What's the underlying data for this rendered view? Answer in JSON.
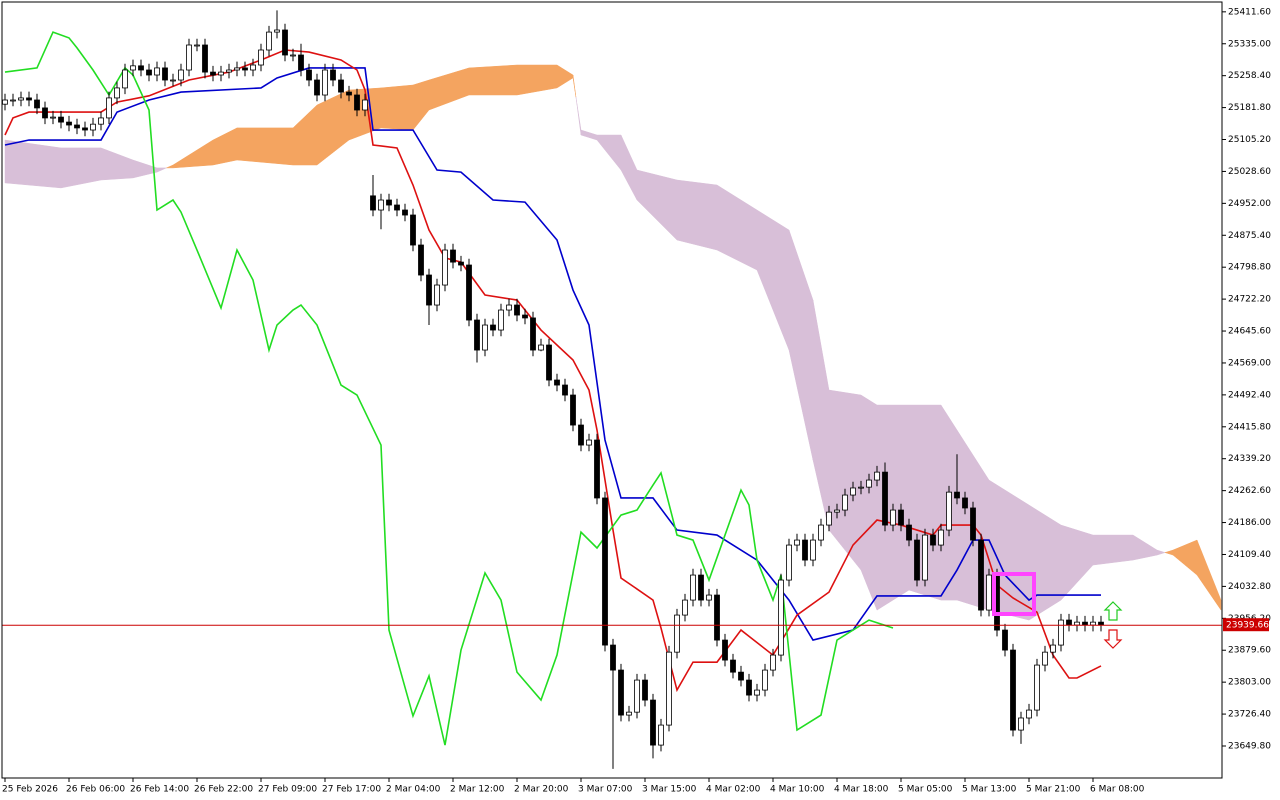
{
  "chart_data": {
    "type": "candlestick",
    "open": [
      25190,
      25200,
      25200,
      25205,
      25200,
      25181,
      25157,
      25159,
      25147,
      25140,
      25133,
      25128,
      25142,
      25157,
      25205,
      25229,
      25272,
      25282,
      25272,
      25260,
      25277,
      25248,
      25248,
      25272,
      25332,
      25332,
      25267,
      25260,
      25267,
      25272,
      25277,
      25272,
      25284,
      25320,
      25363,
      25368,
      25308,
      25308,
      25272,
      25248,
      25212,
      25272,
      25248,
      25219,
      25212,
      25176,
      24970,
      24936,
      24960,
      24948,
      24936,
      24924,
      24852,
      24780,
      24708,
      24756,
      24840,
      24811,
      24804,
      24672,
      24600,
      24660,
      24648,
      24696,
      24708,
      24684,
      24677,
      24600,
      24612,
      24528,
      24516,
      24492,
      24420,
      24372,
      24384,
      24245,
      23892,
      23832,
      23724,
      23731,
      23808,
      23760,
      23652,
      23700,
      23875,
      23964,
      24000,
      24060,
      24000,
      24012,
      23904,
      23856,
      23827,
      23808,
      23772,
      23784,
      23832,
      23868,
      24048,
      24132,
      24144,
      24096,
      24144,
      24180,
      24211,
      24216,
      24252,
      24269,
      24271,
      24288,
      24307,
      24180,
      24216,
      24180,
      24144,
      24048,
      24156,
      24132,
      24168,
      24259,
      24245,
      24221,
      24144,
      23976,
      24060,
      23928,
      23880,
      23688,
      23717,
      23736,
      23844,
      23875,
      23892,
      23952,
      23940,
      23947,
      23940,
      23947
    ],
    "high": [
      25215,
      25215,
      25220,
      25220,
      25215,
      25196,
      25174,
      25174,
      25162,
      25155,
      25148,
      25157,
      25172,
      25220,
      25244,
      25287,
      25297,
      25297,
      25287,
      25292,
      25292,
      25263,
      25287,
      25347,
      25347,
      25347,
      25282,
      25282,
      25287,
      25292,
      25292,
      25299,
      25335,
      25378,
      25415,
      25383,
      25323,
      25335,
      25287,
      25263,
      25287,
      25287,
      25263,
      25234,
      25227,
      25215,
      25020,
      24975,
      24975,
      24963,
      24951,
      24939,
      24867,
      24795,
      24771,
      24855,
      24855,
      24826,
      24819,
      24687,
      24675,
      24675,
      24711,
      24723,
      24723,
      24699,
      24692,
      24627,
      24627,
      24543,
      24531,
      24507,
      24435,
      24399,
      24399,
      24260,
      23907,
      23847,
      23746,
      23823,
      23823,
      23775,
      23715,
      23890,
      23979,
      24015,
      24075,
      24075,
      24027,
      24027,
      23919,
      23871,
      23842,
      23823,
      23799,
      23847,
      23883,
      24063,
      24147,
      24159,
      24159,
      24159,
      24195,
      24226,
      24231,
      24267,
      24284,
      24286,
      24303,
      24322,
      24330,
      24231,
      24231,
      24195,
      24159,
      24171,
      24171,
      24183,
      24274,
      24350,
      24260,
      24236,
      24159,
      24075,
      24075,
      23943,
      23895,
      23732,
      23751,
      23859,
      23890,
      23907,
      23967,
      23967,
      23962,
      23962,
      23962,
      23962
    ],
    "low": [
      25175,
      25185,
      25185,
      25185,
      25166,
      25142,
      25142,
      25132,
      25125,
      25118,
      25113,
      25113,
      25127,
      25142,
      25190,
      25214,
      25257,
      25257,
      25245,
      25245,
      25233,
      25233,
      25233,
      25257,
      25317,
      25252,
      25245,
      25245,
      25252,
      25257,
      25257,
      25257,
      25269,
      25305,
      25348,
      25293,
      25293,
      25257,
      25233,
      25197,
      25197,
      25233,
      25204,
      25197,
      25161,
      25161,
      24921,
      24890,
      24933,
      24921,
      24909,
      24837,
      24765,
      24660,
      24693,
      24741,
      24796,
      24789,
      24657,
      24570,
      24585,
      24633,
      24633,
      24681,
      24669,
      24662,
      24585,
      24597,
      24513,
      24501,
      24477,
      24405,
      24357,
      24357,
      24230,
      23877,
      23595,
      23709,
      23709,
      23716,
      23745,
      23620,
      23637,
      23685,
      23860,
      23949,
      23985,
      23985,
      23985,
      23889,
      23841,
      23812,
      23793,
      23757,
      23757,
      23769,
      23817,
      23853,
      24033,
      24117,
      24081,
      24081,
      24129,
      24165,
      24196,
      24201,
      24237,
      24254,
      24256,
      24273,
      24165,
      24165,
      24165,
      24129,
      24033,
      24033,
      24117,
      24117,
      24153,
      24230,
      24206,
      24129,
      23961,
      23961,
      23913,
      23865,
      23673,
      23655,
      23702,
      23721,
      23829,
      23860,
      23877,
      23925,
      23925,
      23925,
      23925,
      23925
    ],
    "close": [
      25200,
      25200,
      25205,
      25200,
      25181,
      25157,
      25159,
      25147,
      25140,
      25133,
      25128,
      25142,
      25157,
      25205,
      25229,
      25272,
      25282,
      25272,
      25260,
      25277,
      25248,
      25248,
      25272,
      25332,
      25332,
      25267,
      25260,
      25267,
      25272,
      25277,
      25272,
      25284,
      25320,
      25363,
      25368,
      25308,
      25308,
      25272,
      25248,
      25212,
      25272,
      25248,
      25219,
      25212,
      25176,
      25200,
      24936,
      24960,
      24948,
      24936,
      24924,
      24852,
      24780,
      24708,
      24756,
      24840,
      24811,
      24804,
      24672,
      24600,
      24660,
      24648,
      24696,
      24708,
      24684,
      24677,
      24600,
      24612,
      24528,
      24516,
      24492,
      24420,
      24372,
      24384,
      24245,
      23892,
      23832,
      23724,
      23731,
      23808,
      23760,
      23652,
      23700,
      23875,
      23964,
      24000,
      24060,
      24000,
      24012,
      23904,
      23856,
      23827,
      23808,
      23772,
      23784,
      23832,
      23868,
      24048,
      24132,
      24144,
      24096,
      24144,
      24180,
      24211,
      24216,
      24252,
      24269,
      24271,
      24288,
      24307,
      24180,
      24216,
      24180,
      24144,
      24048,
      24156,
      24132,
      24168,
      24259,
      24245,
      24221,
      24144,
      23976,
      24060,
      23928,
      23880,
      23688,
      23717,
      23736,
      23844,
      23875,
      23892,
      23952,
      23940,
      23947,
      23940,
      23947,
      23940
    ],
    "up_color": "#ffffff",
    "down_color": "#000000",
    "cloud": {
      "up_color": "#f4a460",
      "down_color": "#d8bfd8",
      "x": [
        0,
        7,
        12,
        16,
        19,
        21,
        26,
        29,
        36,
        39,
        43,
        47,
        51,
        53,
        58,
        64,
        69,
        71,
        72,
        74,
        77,
        79,
        84,
        89,
        94,
        98,
        101,
        103,
        107,
        109,
        113,
        117,
        119,
        123,
        128,
        132,
        136,
        141,
        144,
        146,
        149,
        152
      ],
      "span_a": [
        25001,
        24989,
        25008,
        25013,
        25027,
        25044,
        25104,
        25133,
        25133,
        25188,
        25224,
        25229,
        25236,
        25248,
        25277,
        25284,
        25284,
        25260,
        25116,
        25104,
        25032,
        24960,
        24864,
        24840,
        24792,
        24600,
        24336,
        24168,
        24072,
        23976,
        24024,
        24000,
        24000,
        23976,
        23952,
        24000,
        24084,
        24096,
        24108,
        24120,
        24144,
        24000
      ],
      "span_b": [
        25104,
        25085,
        25085,
        25056,
        25037,
        25037,
        25044,
        25056,
        25044,
        25044,
        25104,
        25133,
        25128,
        25176,
        25212,
        25212,
        25229,
        25253,
        25128,
        25116,
        25116,
        25032,
        25008,
        24996,
        24936,
        24888,
        24720,
        24504,
        24492,
        24468,
        24468,
        24468,
        24408,
        24288,
        24228,
        24180,
        24156,
        24156,
        24120,
        24108,
        24060,
        23976
      ]
    },
    "lines": [
      {
        "color": "#0000cc",
        "x": [
          0,
          3,
          12,
          14,
          18,
          22,
          32,
          34,
          38,
          45,
          46,
          51,
          54,
          57,
          61,
          65,
          69,
          71,
          73,
          75,
          77,
          81,
          84,
          89,
          94,
          98,
          101,
          106,
          109,
          117,
          119,
          121,
          123,
          125,
          128,
          129,
          137
        ],
        "values": [
          25092,
          25104,
          25104,
          25171,
          25200,
          25219,
          25229,
          25253,
          25277,
          25277,
          25128,
          25128,
          25032,
          25027,
          24960,
          24955,
          24864,
          24744,
          24660,
          24384,
          24245,
          24245,
          24168,
          24156,
          24096,
          24000,
          23904,
          23928,
          24010,
          24010,
          24072,
          24144,
          24144,
          24060,
          24000,
          24012,
          24012
        ]
      },
      {
        "color": "#dd1111",
        "x": [
          0,
          1,
          3,
          7,
          12,
          14,
          18,
          23,
          28,
          32,
          35,
          38,
          42,
          44,
          45,
          46,
          49,
          51,
          53,
          55,
          57,
          60,
          64,
          67,
          71,
          73,
          74,
          76,
          77,
          81,
          82,
          84,
          86,
          89,
          92,
          96,
          99,
          103,
          106,
          109,
          112,
          116,
          117,
          121,
          122,
          124,
          126,
          129,
          131,
          133,
          134,
          137
        ],
        "values": [
          25116,
          25157,
          25171,
          25171,
          25171,
          25195,
          25210,
          25248,
          25267,
          25296,
          25320,
          25315,
          25296,
          25272,
          25224,
          25092,
          25085,
          24996,
          24888,
          24821,
          24811,
          24732,
          24720,
          24648,
          24576,
          24504,
          24408,
          24168,
          24053,
          24000,
          23933,
          23784,
          23851,
          23851,
          23928,
          23868,
          23964,
          24019,
          24132,
          24192,
          24180,
          24156,
          24180,
          24180,
          24156,
          24036,
          24005,
          23971,
          23868,
          23813,
          23813,
          23842
        ]
      },
      {
        "color": "#22dd22",
        "x": [
          0,
          4,
          6,
          8,
          9,
          11,
          13,
          15,
          16,
          18,
          19,
          21,
          22,
          24,
          27,
          29,
          31,
          33,
          34,
          36,
          37,
          39,
          42,
          44,
          47,
          48,
          51,
          53,
          55,
          57,
          60,
          62,
          64,
          67,
          69,
          72,
          74,
          77,
          79,
          81,
          82,
          84,
          86,
          88,
          92,
          93,
          94,
          96,
          97,
          99,
          102,
          104,
          108,
          111
        ],
        "values": [
          25267,
          25277,
          25363,
          25349,
          25325,
          25272,
          25212,
          25277,
          25260,
          25176,
          24936,
          24960,
          24931,
          24840,
          24701,
          24840,
          24768,
          24600,
          24660,
          24696,
          24708,
          24660,
          24516,
          24492,
          24372,
          23928,
          23722,
          23818,
          23652,
          23880,
          24065,
          24000,
          23827,
          23760,
          23868,
          24163,
          24125,
          24204,
          24216,
          24276,
          24305,
          24156,
          24144,
          24048,
          24264,
          24228,
          24096,
          24000,
          24060,
          23688,
          23724,
          23904,
          23952,
          23933
        ]
      }
    ],
    "current_price": 23939.66,
    "current_price_color": "#cc0000",
    "xlim": [
      -0.375,
      152.125
    ],
    "ylim": [
      23573,
      25440
    ],
    "yticks": [
      {
        "value": 25411.6,
        "label": "25411.60"
      },
      {
        "value": 25335,
        "label": "25335.00"
      },
      {
        "value": 25258.4,
        "label": "25258.40"
      },
      {
        "value": 25181.8,
        "label": "25181.80"
      },
      {
        "value": 25105.2,
        "label": "25105.20"
      },
      {
        "value": 25028.6,
        "label": "25028.60"
      },
      {
        "value": 24952,
        "label": "24952.00"
      },
      {
        "value": 24875.4,
        "label": "24875.40"
      },
      {
        "value": 24798.8,
        "label": "24798.80"
      },
      {
        "value": 24722.2,
        "label": "24722.20"
      },
      {
        "value": 24645.6,
        "label": "24645.60"
      },
      {
        "value": 24569,
        "label": "24569.00"
      },
      {
        "value": 24492.4,
        "label": "24492.40"
      },
      {
        "value": 24415.8,
        "label": "24415.80"
      },
      {
        "value": 24339.2,
        "label": "24339.20"
      },
      {
        "value": 24262.6,
        "label": "24262.60"
      },
      {
        "value": 24186,
        "label": "24186.00"
      },
      {
        "value": 24109.4,
        "label": "24109.40"
      },
      {
        "value": 24032.8,
        "label": "24032.80"
      },
      {
        "value": 23956.2,
        "label": "23956.20"
      },
      {
        "value": 23879.6,
        "label": "23879.60"
      },
      {
        "value": 23803,
        "label": "23803.00"
      },
      {
        "value": 23726.4,
        "label": "23726.40"
      },
      {
        "value": 23649.8,
        "label": "23649.80"
      }
    ],
    "xticks": [
      {
        "value": 0,
        "label": "25 Feb 2026"
      },
      {
        "value": 8,
        "label": "26 Feb 06:00"
      },
      {
        "value": 16,
        "label": "26 Feb 14:00"
      },
      {
        "value": 24,
        "label": "26 Feb 22:00"
      },
      {
        "value": 32,
        "label": "27 Feb 09:00"
      },
      {
        "value": 40,
        "label": "27 Feb 17:00"
      },
      {
        "value": 48,
        "label": "2 Mar 04:00"
      },
      {
        "value": 56,
        "label": "2 Mar 12:00"
      },
      {
        "value": 64,
        "label": "2 Mar 20:00"
      },
      {
        "value": 72,
        "label": "3 Mar 07:00"
      },
      {
        "value": 80,
        "label": "3 Mar 15:00"
      },
      {
        "value": 88,
        "label": "4 Mar 02:00"
      },
      {
        "value": 96,
        "label": "4 Mar 10:00"
      },
      {
        "value": 104,
        "label": "4 Mar 18:00"
      },
      {
        "value": 112,
        "label": "5 Mar 05:00"
      },
      {
        "value": 120,
        "label": "5 Mar 13:00"
      },
      {
        "value": 128,
        "label": "5 Mar 21:00"
      },
      {
        "value": 136,
        "label": "6 Mar 08:00"
      }
    ]
  }
}
